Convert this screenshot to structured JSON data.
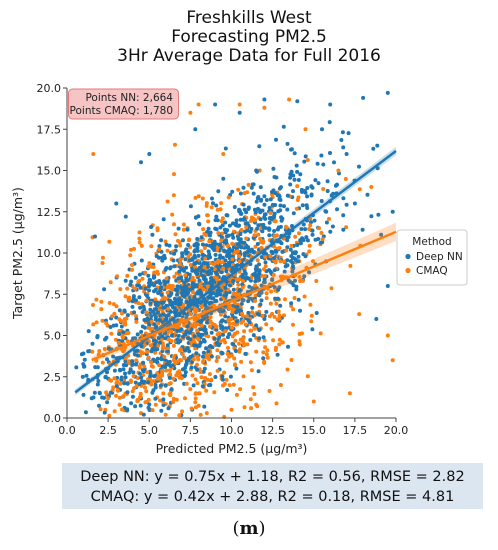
{
  "title": {
    "line1": "Freshkills West",
    "line2": "Forecasting PM2.5",
    "line3": "3Hr Average Data for Full 2016"
  },
  "points_box": {
    "line1": "Points NN: 2,664",
    "line2": "Points CMAQ: 1,780"
  },
  "stats": {
    "line1": "Deep NN: y = 0.75x + 1.18, R2 = 0.56, RMSE = 2.82",
    "line2": "CMAQ: y = 0.42x + 2.88, R2 = 0.18, RMSE = 4.81"
  },
  "caption": {
    "open": "(",
    "letter": "m",
    "close": ")"
  },
  "chart_data": {
    "type": "scatter",
    "xlabel": "Predicted PM2.5 (μg/m³)",
    "ylabel": "Target PM2.5 (μg/m³)",
    "xlim": [
      0.0,
      20.0
    ],
    "ylim": [
      0.0,
      20.0
    ],
    "xticks": [
      "0.0",
      "2.5",
      "5.0",
      "7.5",
      "10.0",
      "12.5",
      "15.0",
      "17.5",
      "20.0"
    ],
    "yticks": [
      "0.0",
      "2.5",
      "5.0",
      "7.5",
      "10.0",
      "12.5",
      "15.0",
      "17.5",
      "20.0"
    ],
    "grid": false,
    "legend": {
      "title": "Method",
      "placement": "right, outside plot"
    },
    "series": [
      {
        "name": "Deep NN",
        "color": "#1f77b4",
        "n_points": 2664,
        "fit": {
          "slope": 0.75,
          "intercept": 1.18
        },
        "point_cloud": {
          "x_center": 8.5,
          "x_spread": 3.6,
          "x_min": 0.5,
          "x_max": 20.0,
          "y_noise": 2.4
        },
        "points": [
          [
            1.0,
            1.4
          ],
          [
            1.5,
            1.2
          ],
          [
            2.0,
            1.5
          ],
          [
            3.0,
            13.0
          ],
          [
            1.7,
            11.0
          ],
          [
            4.5,
            15.5
          ],
          [
            5.0,
            16.0
          ],
          [
            6.5,
            18.3
          ],
          [
            7.8,
            17.5
          ],
          [
            9.0,
            19.0
          ],
          [
            10.5,
            18.5
          ],
          [
            12.0,
            19.3
          ],
          [
            14.0,
            19.2
          ],
          [
            16.0,
            19.0
          ],
          [
            18.0,
            19.4
          ],
          [
            19.5,
            19.7
          ],
          [
            19.8,
            12.5
          ],
          [
            19.5,
            8.0
          ],
          [
            18.8,
            6.0
          ],
          [
            17.5,
            13.0
          ],
          [
            17.0,
            16.0
          ],
          [
            15.5,
            17.5
          ],
          [
            12.8,
            13.5
          ],
          [
            11.5,
            15.0
          ],
          [
            9.5,
            14.5
          ],
          [
            3.8,
            9.0
          ],
          [
            2.5,
            3.0
          ],
          [
            8.3,
            2.8
          ],
          [
            12.0,
            6.0
          ],
          [
            14.5,
            9.8
          ]
        ]
      },
      {
        "name": "CMAQ",
        "color": "#ff7f0e",
        "n_points": 1780,
        "fit": {
          "slope": 0.42,
          "intercept": 2.88
        },
        "point_cloud": {
          "x_center": 7.8,
          "x_spread": 3.4,
          "x_min": 1.5,
          "x_max": 20.0,
          "y_noise": 3.0
        },
        "points": [
          [
            1.6,
            16.0
          ],
          [
            2.5,
            1.2
          ],
          [
            3.2,
            0.8
          ],
          [
            4.5,
            0.3
          ],
          [
            6.0,
            0.2
          ],
          [
            7.0,
            0.4
          ],
          [
            8.5,
            0.3
          ],
          [
            10.0,
            0.5
          ],
          [
            11.5,
            0.8
          ],
          [
            7.5,
            18.5
          ],
          [
            8.0,
            19.0
          ],
          [
            10.5,
            19.0
          ],
          [
            12.0,
            18.8
          ],
          [
            13.5,
            19.3
          ],
          [
            14.5,
            17.5
          ],
          [
            16.5,
            15.0
          ],
          [
            18.5,
            14.0
          ],
          [
            19.5,
            5.0
          ],
          [
            19.8,
            3.5
          ],
          [
            17.2,
            1.5
          ],
          [
            15.0,
            1.0
          ],
          [
            13.0,
            2.0
          ],
          [
            5.5,
            11.5
          ],
          [
            6.5,
            13.5
          ],
          [
            9.5,
            16.0
          ]
        ]
      }
    ]
  }
}
